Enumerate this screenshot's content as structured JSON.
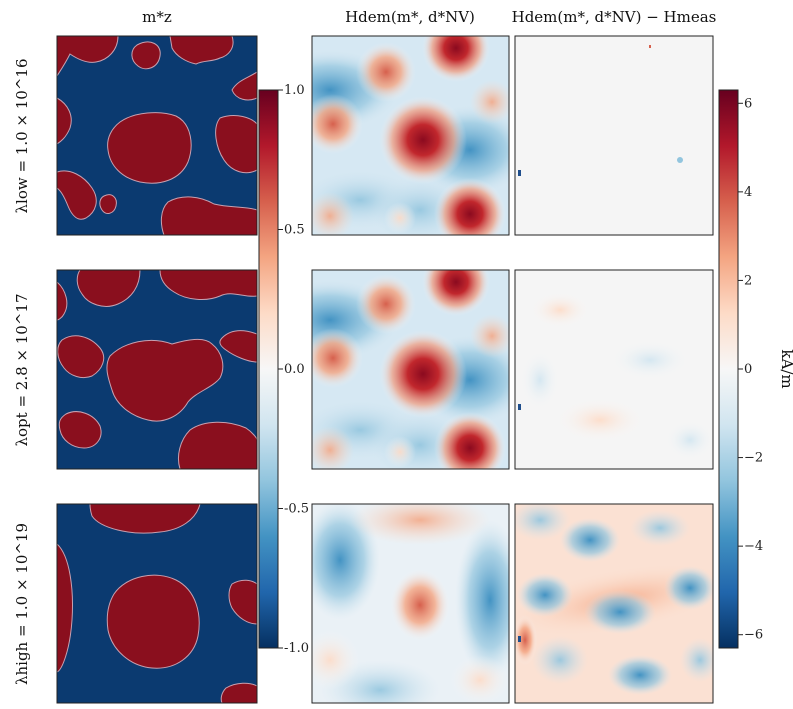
{
  "chart_data": {
    "type": "heatmap",
    "column_titles": [
      "m*z",
      "Hdem(m*, d*NV)",
      "Hdem(m*, d*NV) − Hmeas"
    ],
    "row_labels": [
      "λlow = 1.0 × 10^16",
      "λopt = 2.8 × 10^17",
      "λhigh = 1.0 × 10^19"
    ],
    "colorbar_left": {
      "range": [
        -1.0,
        1.0
      ],
      "ticks": [
        "1.0",
        "0.5",
        "0.0",
        "-0.5",
        "-1.0"
      ],
      "tick_values": [
        1.0,
        0.5,
        0.0,
        -0.5,
        -1.0
      ],
      "colormap": "RdBu_r"
    },
    "colorbar_right": {
      "range": [
        -6.3,
        6.3
      ],
      "ticks": [
        "6",
        "4",
        "2",
        "0",
        "−2",
        "−4",
        "−6"
      ],
      "tick_values": [
        6,
        4,
        2,
        0,
        -2,
        -4,
        -6
      ],
      "label": "kA/m",
      "colormap": "RdBu_r"
    }
  }
}
